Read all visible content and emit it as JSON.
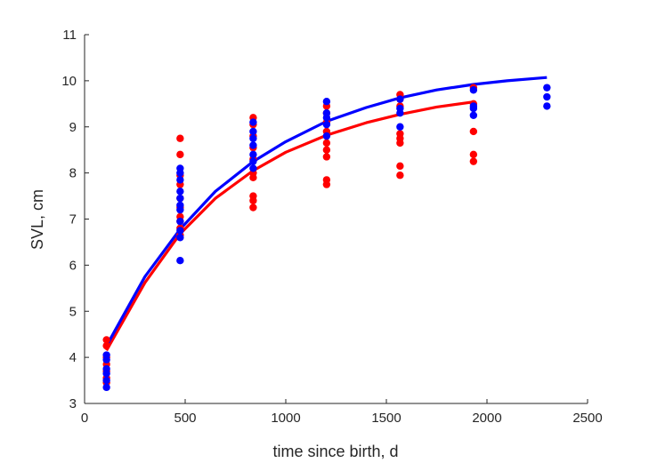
{
  "chart_data": {
    "type": "scatter",
    "title": "",
    "xlabel": "time since birth, d",
    "ylabel": "SVL, cm",
    "xlim": [
      0,
      2500
    ],
    "ylim": [
      3,
      11
    ],
    "xticks": [
      0,
      500,
      1000,
      1500,
      2000,
      2500
    ],
    "yticks": [
      3,
      4,
      5,
      6,
      7,
      8,
      9,
      10,
      11
    ],
    "xtick_labels": [
      "0",
      "500",
      "1000",
      "1500",
      "2000",
      "2500"
    ],
    "ytick_labels": [
      "3",
      "4",
      "5",
      "6",
      "7",
      "8",
      "9",
      "10",
      "11"
    ],
    "grid": false,
    "legend": "none",
    "series": [
      {
        "color": "#ff0000",
        "points": [
          [
            109,
            4.38
          ],
          [
            109,
            4.25
          ],
          [
            109,
            4.0
          ],
          [
            109,
            3.85
          ],
          [
            109,
            3.7
          ],
          [
            109,
            3.55
          ],
          [
            109,
            3.45
          ],
          [
            475,
            8.75
          ],
          [
            475,
            8.4
          ],
          [
            475,
            7.95
          ],
          [
            475,
            7.75
          ],
          [
            475,
            7.45
          ],
          [
            475,
            7.25
          ],
          [
            475,
            7.05
          ],
          [
            475,
            6.95
          ],
          [
            475,
            6.8
          ],
          [
            475,
            6.65
          ],
          [
            838,
            9.2
          ],
          [
            838,
            9.05
          ],
          [
            838,
            8.8
          ],
          [
            838,
            8.55
          ],
          [
            838,
            8.3
          ],
          [
            838,
            8.0
          ],
          [
            838,
            7.9
          ],
          [
            838,
            7.5
          ],
          [
            838,
            7.4
          ],
          [
            838,
            7.25
          ],
          [
            1203,
            9.45
          ],
          [
            1203,
            9.3
          ],
          [
            1203,
            9.1
          ],
          [
            1203,
            8.9
          ],
          [
            1203,
            8.65
          ],
          [
            1203,
            8.5
          ],
          [
            1203,
            8.35
          ],
          [
            1203,
            7.85
          ],
          [
            1203,
            7.75
          ],
          [
            1568,
            9.7
          ],
          [
            1568,
            9.6
          ],
          [
            1568,
            9.45
          ],
          [
            1568,
            8.85
          ],
          [
            1568,
            8.75
          ],
          [
            1568,
            8.65
          ],
          [
            1568,
            8.15
          ],
          [
            1568,
            7.95
          ],
          [
            1933,
            9.85
          ],
          [
            1933,
            9.5
          ],
          [
            1933,
            8.9
          ],
          [
            1933,
            8.4
          ],
          [
            1933,
            8.25
          ]
        ],
        "fit": [
          [
            109,
            4.15
          ],
          [
            300,
            5.62
          ],
          [
            475,
            6.68
          ],
          [
            650,
            7.45
          ],
          [
            838,
            8.05
          ],
          [
            1000,
            8.45
          ],
          [
            1203,
            8.82
          ],
          [
            1400,
            9.09
          ],
          [
            1568,
            9.27
          ],
          [
            1750,
            9.43
          ],
          [
            1933,
            9.54
          ]
        ]
      },
      {
        "color": "#0000ff",
        "points": [
          [
            109,
            4.05
          ],
          [
            109,
            3.95
          ],
          [
            109,
            3.75
          ],
          [
            109,
            3.65
          ],
          [
            109,
            3.5
          ],
          [
            109,
            3.35
          ],
          [
            475,
            8.1
          ],
          [
            475,
            8.0
          ],
          [
            475,
            7.85
          ],
          [
            475,
            7.6
          ],
          [
            475,
            7.45
          ],
          [
            475,
            7.3
          ],
          [
            475,
            7.2
          ],
          [
            475,
            6.95
          ],
          [
            475,
            6.75
          ],
          [
            475,
            6.6
          ],
          [
            475,
            6.1
          ],
          [
            838,
            9.1
          ],
          [
            838,
            8.9
          ],
          [
            838,
            8.75
          ],
          [
            838,
            8.6
          ],
          [
            838,
            8.4
          ],
          [
            838,
            8.25
          ],
          [
            838,
            8.1
          ],
          [
            1203,
            9.55
          ],
          [
            1203,
            9.3
          ],
          [
            1203,
            9.2
          ],
          [
            1203,
            9.05
          ],
          [
            1203,
            8.8
          ],
          [
            1568,
            9.6
          ],
          [
            1568,
            9.4
          ],
          [
            1568,
            9.3
          ],
          [
            1568,
            9.0
          ],
          [
            1933,
            9.8
          ],
          [
            1933,
            9.45
          ],
          [
            1933,
            9.4
          ],
          [
            1933,
            9.25
          ],
          [
            2298,
            9.85
          ],
          [
            2298,
            9.65
          ],
          [
            2298,
            9.45
          ]
        ],
        "fit": [
          [
            109,
            4.25
          ],
          [
            300,
            5.75
          ],
          [
            475,
            6.78
          ],
          [
            650,
            7.6
          ],
          [
            838,
            8.25
          ],
          [
            1000,
            8.68
          ],
          [
            1203,
            9.12
          ],
          [
            1400,
            9.42
          ],
          [
            1568,
            9.63
          ],
          [
            1750,
            9.8
          ],
          [
            1933,
            9.92
          ],
          [
            2100,
            10.0
          ],
          [
            2298,
            10.07
          ]
        ]
      }
    ]
  }
}
